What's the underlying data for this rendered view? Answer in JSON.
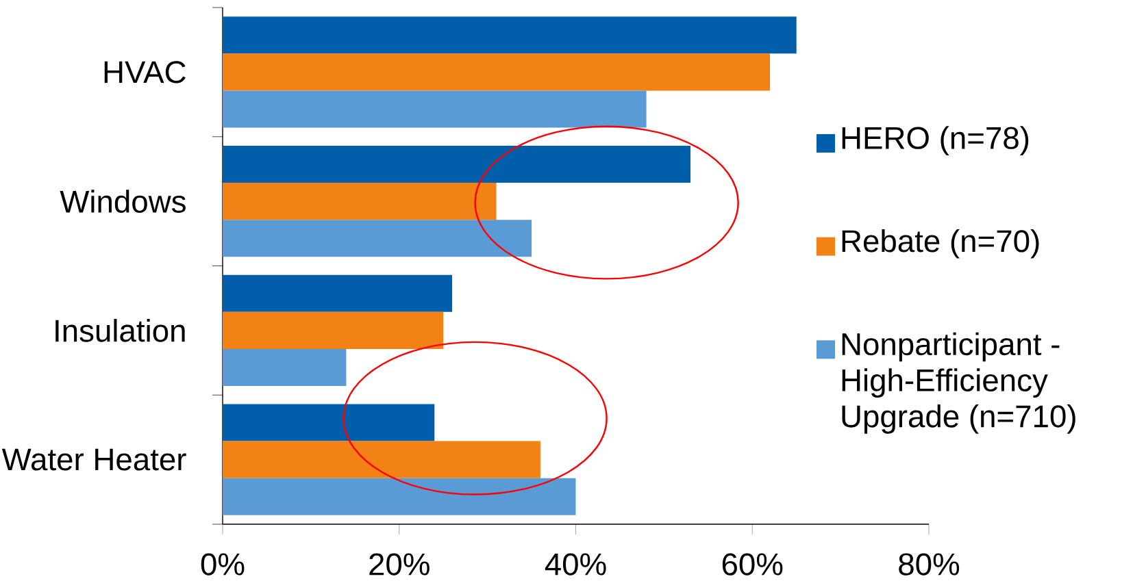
{
  "chart_data": {
    "type": "bar",
    "orientation": "horizontal",
    "categories": [
      "HVAC",
      "Windows",
      "Insulation",
      "Water Heater"
    ],
    "series": [
      {
        "name": "HERO (n=78)",
        "color": "#005eaa",
        "values": [
          65,
          53,
          26,
          24
        ]
      },
      {
        "name": "Rebate (n=70)",
        "color": "#f28215",
        "values": [
          62,
          31,
          25,
          36
        ]
      },
      {
        "name": "Nonparticipant - High-Efficiency Upgrade (n=710)",
        "color": "#5b9bd5",
        "values": [
          48,
          35,
          14,
          40
        ]
      }
    ],
    "xlim": [
      0,
      80
    ],
    "xticks": [
      {
        "value": 0,
        "label": "0%"
      },
      {
        "value": 20,
        "label": "20%"
      },
      {
        "value": 40,
        "label": "40%"
      },
      {
        "value": 60,
        "label": "60%"
      },
      {
        "value": 80,
        "label": "80%"
      }
    ],
    "legend": "right",
    "grid": false
  }
}
